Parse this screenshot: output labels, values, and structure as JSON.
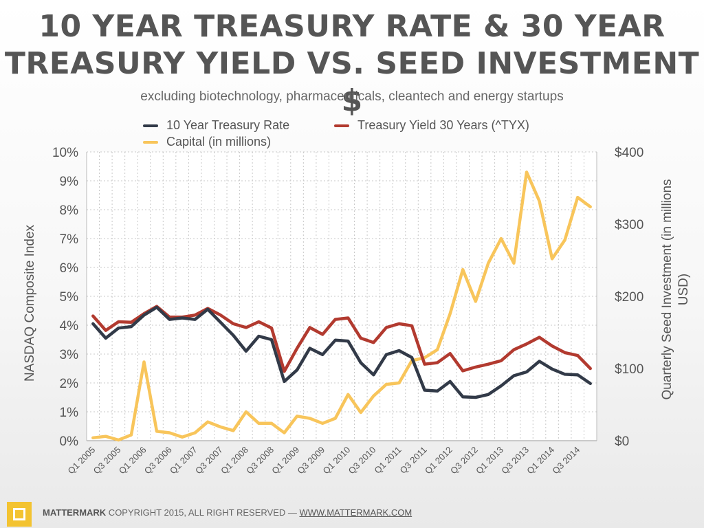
{
  "header": {
    "title_line1": "10 YEAR TREASURY RATE & 30 YEAR",
    "title_line2": "TREASURY YIELD VS. SEED INVESTMENT $",
    "subtitle": "excluding biotechnology, pharmaceuticals, cleantech and energy startups"
  },
  "footer": {
    "brand": "MATTERMARK",
    "copyright": " COPYRIGHT 2015, ALL RIGHT RESERVED — ",
    "url": "WWW.MATTERMARK.COM"
  },
  "chart_data": {
    "type": "line",
    "title": "10 YEAR TREASURY RATE & 30 YEAR TREASURY YIELD VS. SEED INVESTMENT $",
    "subtitle": "excluding biotechnology, pharmaceuticals, cleantech and energy startups",
    "ylabel_left": "NASDAQ Composite Index",
    "ylabel_right": "Quarterly Seed Investment (in millions USD)",
    "ylim_left": [
      0,
      10
    ],
    "ylim_right": [
      0,
      400
    ],
    "yticks_left": [
      "0%",
      "1%",
      "2%",
      "3%",
      "4%",
      "5%",
      "6%",
      "7%",
      "8%",
      "9%",
      "10%"
    ],
    "yticks_right": [
      "$0",
      "$100",
      "$200",
      "$300",
      "$400"
    ],
    "grid": true,
    "legend_position": "top",
    "categories": [
      "Q1 2005",
      "Q2 2005",
      "Q3 2005",
      "Q4 2005",
      "Q1 2006",
      "Q2 2006",
      "Q3 2006",
      "Q4 2006",
      "Q1 2007",
      "Q2 2007",
      "Q3 2007",
      "Q4 2007",
      "Q1 2008",
      "Q2 2008",
      "Q3 2008",
      "Q4 2008",
      "Q1 2009",
      "Q2 2009",
      "Q3 2009",
      "Q4 2009",
      "Q1 2010",
      "Q2 2010",
      "Q3 2010",
      "Q4 2010",
      "Q1 2011",
      "Q2 2011",
      "Q3 2011",
      "Q4 2011",
      "Q1 2012",
      "Q2 2012",
      "Q3 2012",
      "Q4 2012",
      "Q1 2013",
      "Q2 2013",
      "Q3 2013",
      "Q4 2013",
      "Q1 2014",
      "Q2 2014",
      "Q3 2014",
      "Q4 2014"
    ],
    "tick_labels": [
      "Q1 2005",
      "Q3 2005",
      "Q1 2006",
      "Q3 2006",
      "Q1 2007",
      "Q3 2007",
      "Q1 2008",
      "Q3 2008",
      "Q1 2009",
      "Q3 2009",
      "Q1 2010",
      "Q3 2010",
      "Q1 2011",
      "Q3 2011",
      "Q1 2012",
      "Q3 2012",
      "Q1 2013",
      "Q3 2013",
      "Q1 2014",
      "Q3 2014"
    ],
    "series": [
      {
        "name": "10 Year Treasury Rate",
        "axis": "left",
        "color": "#323a48",
        "values": [
          4.05,
          3.55,
          3.9,
          3.95,
          4.35,
          4.62,
          4.2,
          4.25,
          4.2,
          4.55,
          4.1,
          3.65,
          3.1,
          3.62,
          3.5,
          2.05,
          2.45,
          3.2,
          2.98,
          3.48,
          3.45,
          2.7,
          2.28,
          2.98,
          3.12,
          2.88,
          1.75,
          1.72,
          2.05,
          1.52,
          1.5,
          1.6,
          1.9,
          2.25,
          2.38,
          2.75,
          2.48,
          2.3,
          2.28,
          1.98
        ]
      },
      {
        "name": "Treasury Yield 30 Years (^TYX)",
        "axis": "left",
        "color": "#b23a2f",
        "values": [
          4.32,
          3.82,
          4.12,
          4.1,
          4.4,
          4.65,
          4.28,
          4.28,
          4.35,
          4.58,
          4.35,
          4.05,
          3.92,
          4.12,
          3.9,
          2.4,
          3.2,
          3.92,
          3.68,
          4.2,
          4.25,
          3.55,
          3.4,
          3.92,
          4.05,
          3.98,
          2.65,
          2.7,
          3.02,
          2.42,
          2.55,
          2.65,
          2.77,
          3.15,
          3.35,
          3.58,
          3.28,
          3.05,
          2.95,
          2.5
        ]
      },
      {
        "name": "Capital (in millions)",
        "axis": "right",
        "color": "#f8c55b",
        "values": [
          4,
          6,
          1,
          8,
          109,
          13,
          11,
          5,
          11,
          26,
          19,
          14,
          40,
          24,
          24,
          11,
          34,
          31,
          24,
          31,
          64,
          39,
          62,
          78,
          80,
          111,
          115,
          126,
          176,
          237,
          193,
          246,
          280,
          246,
          372,
          332,
          252,
          278,
          337,
          324
        ]
      }
    ]
  }
}
